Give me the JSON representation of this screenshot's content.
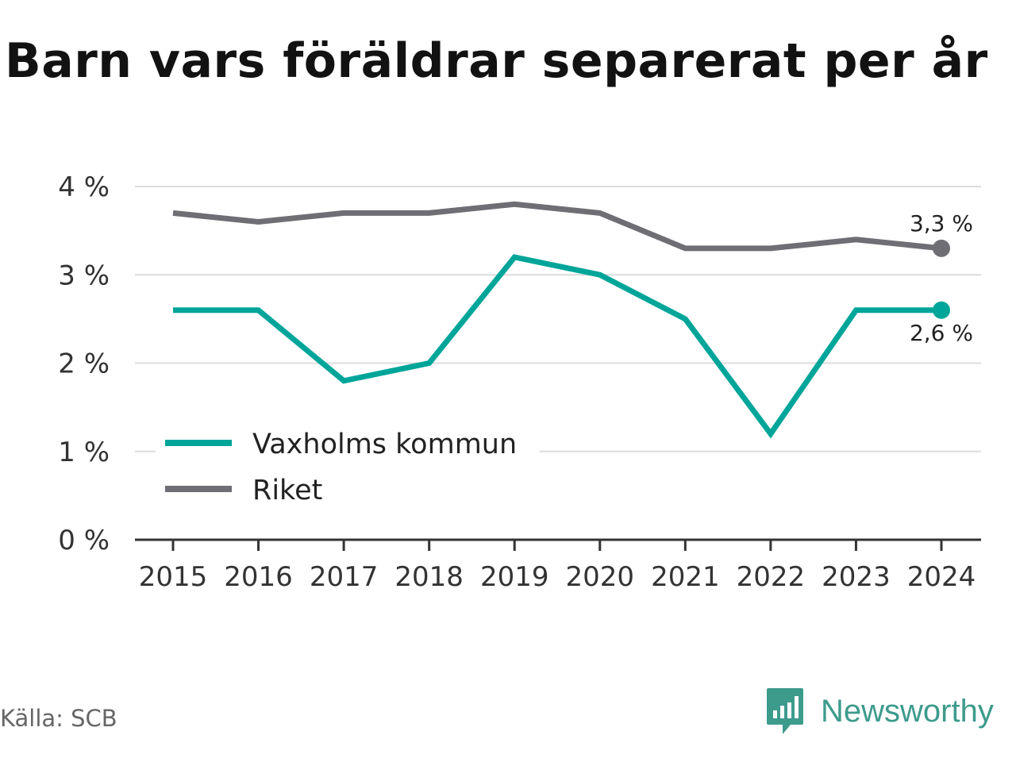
{
  "title": "Barn vars föräldrar separerat per år",
  "source": "Källa: SCB",
  "brand": {
    "name": "Newsworthy",
    "color": "#3d9b8c"
  },
  "chart_data": {
    "type": "line",
    "x": [
      "2015",
      "2016",
      "2017",
      "2018",
      "2019",
      "2020",
      "2021",
      "2022",
      "2023",
      "2024"
    ],
    "y_ticks": [
      "0 %",
      "1 %",
      "2 %",
      "3 %",
      "4 %"
    ],
    "ylim": [
      0,
      4
    ],
    "grid": true,
    "legend_position": "lower-left",
    "series": [
      {
        "name": "Vaxholms kommun",
        "color": "#00a59a",
        "values": [
          2.6,
          2.6,
          1.8,
          2.0,
          3.2,
          3.0,
          2.5,
          1.2,
          2.6,
          2.6
        ],
        "end_label": "2,6 %"
      },
      {
        "name": "Riket",
        "color": "#6f6e75",
        "values": [
          3.7,
          3.6,
          3.7,
          3.7,
          3.8,
          3.7,
          3.3,
          3.3,
          3.4,
          3.3
        ],
        "end_label": "3,3 %"
      }
    ]
  }
}
